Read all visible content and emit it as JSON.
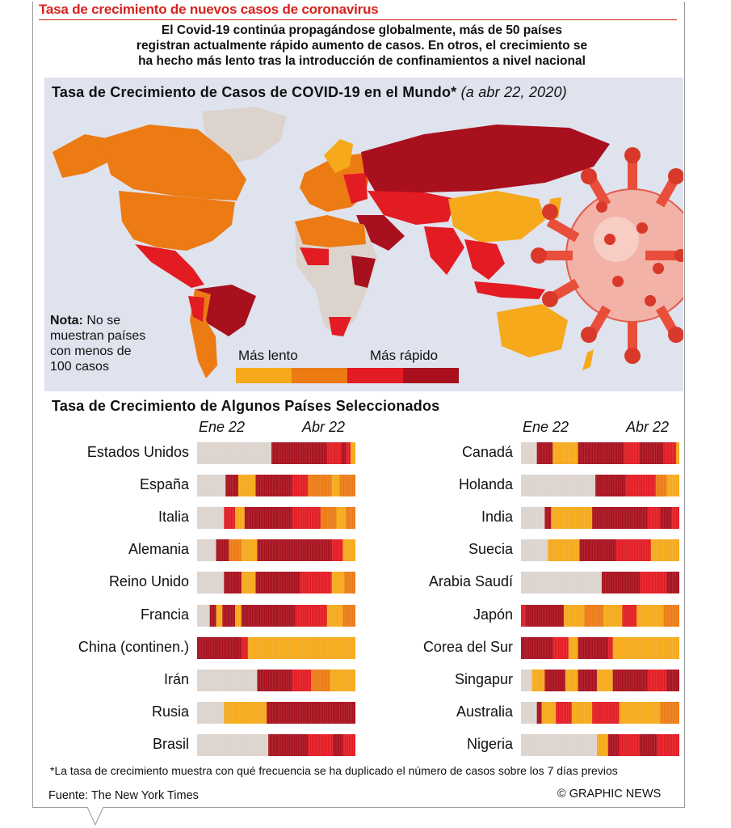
{
  "header": {
    "headline": "Tasa de crecimiento de nuevos casos de coronavirus",
    "intro_line1": "El Covid-19  continúa propagándose globalmente, más de 50 países",
    "intro_line2": "registran actualmente rápido aumento de casos. En otros, el crecimiento se",
    "intro_line3": "ha hecho más lento tras la introducción de confinamientos a nivel nacional"
  },
  "map": {
    "title": "Tasa de Crecimiento de Casos de COVID-19 en el Mundo*",
    "date": "(a abr 22, 2020)",
    "note_label": "Nota:",
    "note_line1": "No se",
    "note_line2": "muestran países",
    "note_line3": "con menos de",
    "note_line4": "100 casos",
    "legend_slow": "Más lento",
    "legend_fast": "Más rápido",
    "legend_colors": [
      "#f6a91a",
      "#ec7b14",
      "#e31b23",
      "#a8101d"
    ]
  },
  "colors": {
    "none": "#dcd3cd",
    "slowest": "#f6a91a",
    "slow": "#ec7b14",
    "fast": "#e31b23",
    "fastest": "#a8101d",
    "headline": "#d6231c",
    "map_bg": "#dfe3ee"
  },
  "chart_data": {
    "type": "heatmap",
    "title": "Tasa de Crecimiento de Algunos Países Seleccionados",
    "x_start_label": "Ene 22",
    "x_end_label": "Abr 22",
    "scale": [
      "none",
      "slowest",
      "slow",
      "fast",
      "fastest"
    ],
    "footnote": "*La tasa de crecimiento muestra con qué frecuencia se ha duplicado el número de casos sobre los 7 días previos",
    "left": [
      {
        "country": "Estados Unidos",
        "bands": [
          [
            0,
            "none"
          ],
          [
            47,
            "fastest"
          ],
          [
            82,
            "fast"
          ],
          [
            91,
            "fastest"
          ],
          [
            94,
            "fast"
          ],
          [
            97,
            "slowest"
          ]
        ]
      },
      {
        "country": "España",
        "bands": [
          [
            0,
            "none"
          ],
          [
            18,
            "fastest"
          ],
          [
            26,
            "slowest"
          ],
          [
            37,
            "fastest"
          ],
          [
            60,
            "fast"
          ],
          [
            70,
            "slow"
          ],
          [
            85,
            "slowest"
          ],
          [
            90,
            "slow"
          ]
        ]
      },
      {
        "country": "Italia",
        "bands": [
          [
            0,
            "none"
          ],
          [
            17,
            "fast"
          ],
          [
            24,
            "slowest"
          ],
          [
            30,
            "fastest"
          ],
          [
            60,
            "fast"
          ],
          [
            78,
            "slow"
          ],
          [
            88,
            "slowest"
          ],
          [
            94,
            "slow"
          ]
        ]
      },
      {
        "country": "Alemania",
        "bands": [
          [
            0,
            "none"
          ],
          [
            12,
            "fastest"
          ],
          [
            20,
            "slow"
          ],
          [
            28,
            "slowest"
          ],
          [
            38,
            "fastest"
          ],
          [
            85,
            "fast"
          ],
          [
            92,
            "slowest"
          ]
        ]
      },
      {
        "country": "Reino Unido",
        "bands": [
          [
            0,
            "none"
          ],
          [
            17,
            "fastest"
          ],
          [
            28,
            "slowest"
          ],
          [
            37,
            "fastest"
          ],
          [
            65,
            "fast"
          ],
          [
            85,
            "slowest"
          ],
          [
            93,
            "slow"
          ]
        ]
      },
      {
        "country": "Francia",
        "bands": [
          [
            0,
            "none"
          ],
          [
            8,
            "fastest"
          ],
          [
            12,
            "slowest"
          ],
          [
            16,
            "fastest"
          ],
          [
            24,
            "slowest"
          ],
          [
            28,
            "fastest"
          ],
          [
            62,
            "fast"
          ],
          [
            82,
            "slowest"
          ],
          [
            92,
            "slow"
          ]
        ]
      },
      {
        "country": "China (continen.)",
        "bands": [
          [
            0,
            "fastest"
          ],
          [
            28,
            "fast"
          ],
          [
            32,
            "slowest"
          ]
        ]
      },
      {
        "country": "Irán",
        "bands": [
          [
            0,
            "none"
          ],
          [
            38,
            "fastest"
          ],
          [
            60,
            "fast"
          ],
          [
            72,
            "slow"
          ],
          [
            84,
            "slowest"
          ]
        ]
      },
      {
        "country": "Rusia",
        "bands": [
          [
            0,
            "none"
          ],
          [
            17,
            "slowest"
          ],
          [
            44,
            "fastest"
          ]
        ]
      },
      {
        "country": "Brasil",
        "bands": [
          [
            0,
            "none"
          ],
          [
            45,
            "fastest"
          ],
          [
            70,
            "fast"
          ],
          [
            86,
            "fastest"
          ],
          [
            92,
            "fast"
          ]
        ]
      }
    ],
    "right": [
      {
        "country": "Canadá",
        "bands": [
          [
            0,
            "none"
          ],
          [
            10,
            "fastest"
          ],
          [
            20,
            "slowest"
          ],
          [
            36,
            "fastest"
          ],
          [
            65,
            "fast"
          ],
          [
            75,
            "fastest"
          ],
          [
            90,
            "fast"
          ],
          [
            98,
            "slowest"
          ]
        ]
      },
      {
        "country": "Holanda",
        "bands": [
          [
            0,
            "none"
          ],
          [
            47,
            "fastest"
          ],
          [
            66,
            "fast"
          ],
          [
            85,
            "slow"
          ],
          [
            92,
            "slowest"
          ]
        ]
      },
      {
        "country": "India",
        "bands": [
          [
            0,
            "none"
          ],
          [
            15,
            "fastest"
          ],
          [
            19,
            "slowest"
          ],
          [
            45,
            "fastest"
          ],
          [
            80,
            "fast"
          ],
          [
            88,
            "fastest"
          ],
          [
            95,
            "fast"
          ]
        ]
      },
      {
        "country": "Suecia",
        "bands": [
          [
            0,
            "none"
          ],
          [
            17,
            "slowest"
          ],
          [
            37,
            "fastest"
          ],
          [
            60,
            "fast"
          ],
          [
            82,
            "slowest"
          ]
        ]
      },
      {
        "country": "Arabia Saudí",
        "bands": [
          [
            0,
            "none"
          ],
          [
            51,
            "fastest"
          ],
          [
            75,
            "fast"
          ],
          [
            92,
            "fastest"
          ]
        ]
      },
      {
        "country": "Japón",
        "bands": [
          [
            0,
            "fast"
          ],
          [
            3,
            "fastest"
          ],
          [
            27,
            "slowest"
          ],
          [
            40,
            "slow"
          ],
          [
            52,
            "slowest"
          ],
          [
            64,
            "fast"
          ],
          [
            73,
            "slowest"
          ],
          [
            90,
            "slow"
          ]
        ]
      },
      {
        "country": "Corea del Sur",
        "bands": [
          [
            0,
            "fastest"
          ],
          [
            20,
            "fast"
          ],
          [
            30,
            "slowest"
          ],
          [
            36,
            "fastest"
          ],
          [
            55,
            "fast"
          ],
          [
            58,
            "slowest"
          ]
        ]
      },
      {
        "country": "Singapur",
        "bands": [
          [
            0,
            "none"
          ],
          [
            7,
            "slowest"
          ],
          [
            15,
            "fastest"
          ],
          [
            28,
            "slowest"
          ],
          [
            36,
            "fastest"
          ],
          [
            48,
            "slowest"
          ],
          [
            58,
            "fastest"
          ],
          [
            80,
            "fast"
          ],
          [
            92,
            "fastest"
          ]
        ]
      },
      {
        "country": "Australia",
        "bands": [
          [
            0,
            "none"
          ],
          [
            10,
            "fastest"
          ],
          [
            13,
            "slowest"
          ],
          [
            22,
            "fast"
          ],
          [
            32,
            "slowest"
          ],
          [
            45,
            "fast"
          ],
          [
            62,
            "slowest"
          ],
          [
            88,
            "slow"
          ]
        ]
      },
      {
        "country": "Nigeria",
        "bands": [
          [
            0,
            "none"
          ],
          [
            48,
            "slowest"
          ],
          [
            55,
            "fastest"
          ],
          [
            62,
            "fast"
          ],
          [
            75,
            "fastest"
          ],
          [
            86,
            "fast"
          ]
        ]
      }
    ]
  },
  "footer": {
    "source": "Fuente: The New York Times",
    "credit": "© GRAPHIC NEWS"
  }
}
